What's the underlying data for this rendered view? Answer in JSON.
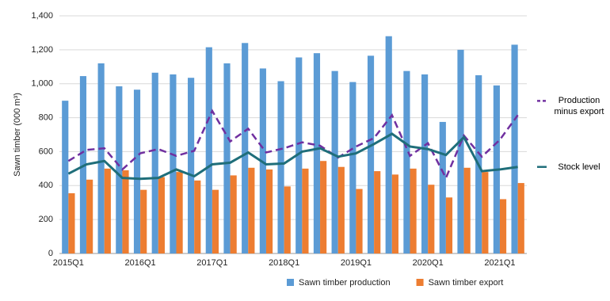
{
  "chart_data": {
    "type": "bar",
    "y_label": "Sawn timber (000 m³)",
    "categories": [
      "2015Q1",
      null,
      null,
      null,
      "2016Q1",
      null,
      null,
      null,
      "2017Q1",
      null,
      null,
      null,
      "2018Q1",
      null,
      null,
      null,
      "2019Q1",
      null,
      null,
      null,
      "2020Q1",
      null,
      null,
      null,
      "2021Q1",
      null
    ],
    "series": [
      {
        "name": "Sawn timber production",
        "type": "bar",
        "color": "#5b9bd5",
        "values": [
          900,
          1045,
          1120,
          985,
          965,
          1065,
          1055,
          1035,
          1215,
          1120,
          1240,
          1090,
          1015,
          1155,
          1180,
          1075,
          1010,
          1165,
          1280,
          1075,
          1055,
          775,
          1200,
          1050,
          990,
          1230
        ]
      },
      {
        "name": "Sawn timber export",
        "type": "bar",
        "color": "#ed7d31",
        "values": [
          355,
          435,
          500,
          490,
          375,
          450,
          480,
          430,
          375,
          460,
          505,
          495,
          395,
          500,
          545,
          510,
          380,
          485,
          465,
          500,
          405,
          330,
          505,
          480,
          320,
          415
        ]
      },
      {
        "name": "Production minus export",
        "type": "line",
        "dashed": true,
        "color": "#7030a0",
        "values": [
          545,
          610,
          620,
          495,
          590,
          615,
          575,
          605,
          840,
          660,
          735,
          595,
          620,
          655,
          635,
          565,
          630,
          680,
          815,
          575,
          650,
          445,
          695,
          570,
          670,
          815
        ]
      },
      {
        "name": "Stock level",
        "type": "line",
        "dashed": false,
        "color": "#1f6e7a",
        "values": [
          470,
          525,
          545,
          445,
          440,
          445,
          495,
          455,
          525,
          535,
          595,
          525,
          530,
          600,
          620,
          570,
          590,
          645,
          705,
          630,
          615,
          580,
          685,
          485,
          495,
          510
        ]
      }
    ],
    "ylim": [
      0,
      1400
    ],
    "yticks": [
      0,
      200,
      400,
      600,
      800,
      {
        "value": 1000,
        "label": "1,000"
      },
      {
        "value": 1200,
        "label": "1,200"
      },
      {
        "value": 1400,
        "label": "1,400"
      }
    ],
    "grid": true
  }
}
